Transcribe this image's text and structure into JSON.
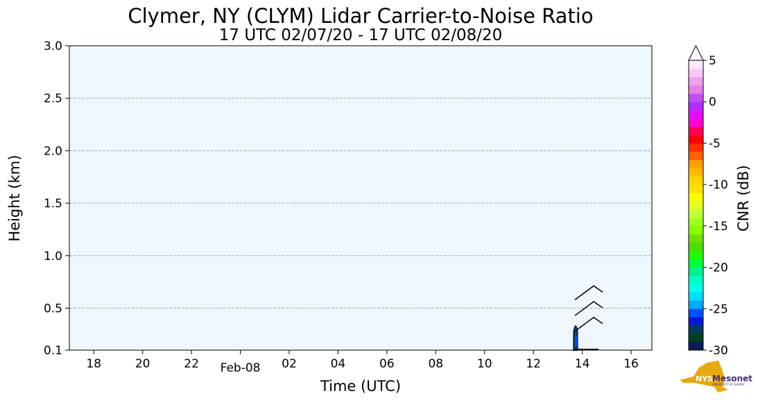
{
  "chart_data": {
    "type": "heatmap",
    "title": "Clymer, NY (CLYM) Lidar Carrier-to-Noise Ratio",
    "subtitle": "17 UTC 02/07/20 - 17 UTC 02/08/20",
    "xlabel": "Time (UTC)",
    "ylabel": "Height (km)",
    "xlim": [
      17,
      40.85
    ],
    "ylim": [
      0.1,
      3.0
    ],
    "x_ticks": [
      {
        "v": 18,
        "label": "18"
      },
      {
        "v": 20,
        "label": "20"
      },
      {
        "v": 22,
        "label": "22"
      },
      {
        "v": 24,
        "label": "Feb-08",
        "low": true
      },
      {
        "v": 26,
        "label": "02"
      },
      {
        "v": 28,
        "label": "04"
      },
      {
        "v": 30,
        "label": "06"
      },
      {
        "v": 32,
        "label": "08"
      },
      {
        "v": 34,
        "label": "10"
      },
      {
        "v": 36,
        "label": "12"
      },
      {
        "v": 38,
        "label": "14"
      },
      {
        "v": 40,
        "label": "16"
      }
    ],
    "y_ticks": [
      {
        "v": 0.1,
        "label": "0.1"
      },
      {
        "v": 0.5,
        "label": "0.5"
      },
      {
        "v": 1.0,
        "label": "1.0"
      },
      {
        "v": 1.5,
        "label": "1.5"
      },
      {
        "v": 2.0,
        "label": "2.0"
      },
      {
        "v": 2.5,
        "label": "2.5"
      },
      {
        "v": 3.0,
        "label": "3.0"
      }
    ],
    "grid": "horizontal dashed",
    "data_region": {
      "time_start": 37.65,
      "time_end": 37.8,
      "height_max": 0.35,
      "approx_cnr_db": -27
    },
    "wind_barbs": [
      {
        "time": 37.7,
        "height": 0.12
      },
      {
        "time": 37.7,
        "height": 0.28
      },
      {
        "time": 37.7,
        "height": 0.43
      },
      {
        "time": 37.7,
        "height": 0.58
      }
    ],
    "colorbar": {
      "label": "CNR (dB)",
      "min": -30,
      "max": 5,
      "extend": "max",
      "ticks": [
        {
          "v": 5,
          "label": "5"
        },
        {
          "v": 0,
          "label": "0"
        },
        {
          "v": -5,
          "label": "-5"
        },
        {
          "v": -10,
          "label": "-10"
        },
        {
          "v": -15,
          "label": "-15"
        },
        {
          "v": -20,
          "label": "-20"
        },
        {
          "v": -25,
          "label": "-25"
        },
        {
          "v": -30,
          "label": "-30"
        }
      ],
      "colors": [
        "#0a1a5a",
        "#004020",
        "#003a5a",
        "#0018d0",
        "#0050ff",
        "#00a8ff",
        "#00dcff",
        "#00ffee",
        "#00ffc0",
        "#00f090",
        "#00ff40",
        "#20ff00",
        "#50dd00",
        "#70e000",
        "#88ff00",
        "#a0ff20",
        "#c0ff40",
        "#e0ff20",
        "#ffff00",
        "#ffe000",
        "#ffd800",
        "#ffb800",
        "#ffa000",
        "#ff6000",
        "#ff3000",
        "#ff0000",
        "#ff0050",
        "#ff00d0",
        "#e010ff",
        "#b030ff",
        "#c050f0",
        "#e880e8",
        "#f0a0ec",
        "#f8c8f4",
        "#fce8fa"
      ]
    }
  },
  "logo": {
    "text": "NYS Mesonet",
    "sub": "UNIVERSITY AT ALBANY"
  },
  "colors": {
    "plot_bg": "#eef6fe",
    "logo_gold": "#e8a810",
    "logo_purple": "#4b2a7a"
  }
}
